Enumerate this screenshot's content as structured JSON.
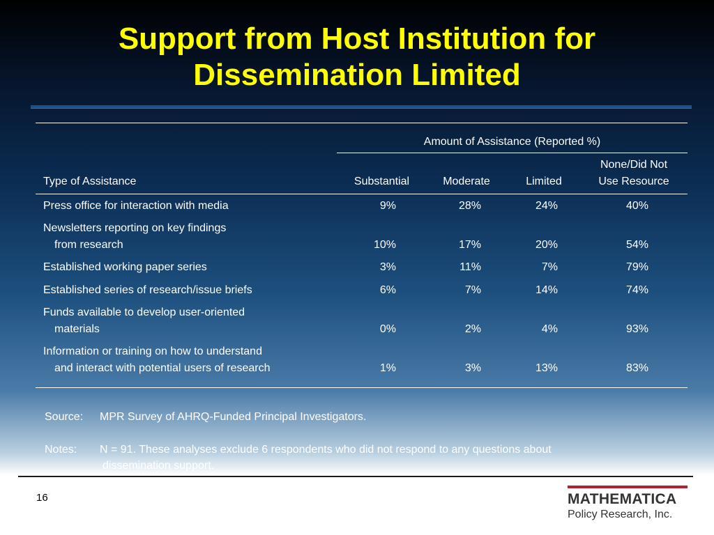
{
  "slide": {
    "title": "Support from Host Institution for Dissemination Limited",
    "page_number": "16"
  },
  "table": {
    "group_header": "Amount of Assistance (Reported %)",
    "row_header": "Type of Assistance",
    "columns": [
      "Substantial",
      "Moderate",
      "Limited"
    ],
    "last_column_line1": "None/Did Not",
    "last_column_line2": "Use Resource",
    "rows": [
      {
        "line1": "Press office for interaction with media",
        "line2": "",
        "values": [
          "9%",
          "28%",
          "24%",
          "40%"
        ]
      },
      {
        "line1": "Newsletters reporting on key findings",
        "line2": "from research",
        "values": [
          "10%",
          "17%",
          "20%",
          "54%"
        ]
      },
      {
        "line1": "Established working paper series",
        "line2": "",
        "values": [
          "3%",
          "11%",
          "7%",
          "79%"
        ]
      },
      {
        "line1": "Established series of research/issue briefs",
        "line2": "",
        "values": [
          "6%",
          "7%",
          "14%",
          "74%"
        ]
      },
      {
        "line1": "Funds available to develop user-oriented",
        "line2": "materials",
        "values": [
          "0%",
          "2%",
          "4%",
          "93%"
        ]
      },
      {
        "line1": "Information or training on how to understand",
        "line2": "and interact with potential users of research",
        "values": [
          "1%",
          "3%",
          "13%",
          "83%"
        ]
      }
    ]
  },
  "notes": {
    "source_label": "Source:",
    "source_text": "MPR Survey of AHRQ-Funded Principal Investigators.",
    "notes_label": "Notes:",
    "notes_line1": "N = 91. These analyses exclude 6 respondents who did not respond to any questions about",
    "notes_line2": "dissemination support."
  },
  "logo": {
    "name": "MATHEMATICA",
    "tagline": "Policy Research, Inc."
  }
}
